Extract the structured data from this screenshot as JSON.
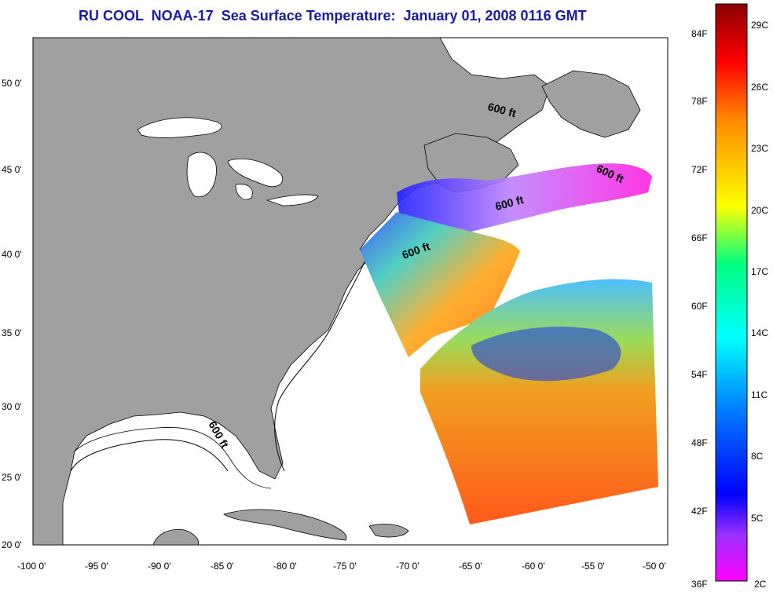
{
  "title": "RU COOL  NOAA-17  Sea Surface Temperature:  January 01, 2008 0116 GMT",
  "map": {
    "lat_labels": [
      "50 0'",
      "45 0'",
      "40 0'",
      "35 0'",
      "30 0'",
      "25 0'",
      "20 0'"
    ],
    "lon_labels": [
      "-100 0'",
      "-95 0'",
      "-90 0'",
      "-85 0'",
      "-80 0'",
      "-75 0'",
      "-70 0'",
      "-65 0'",
      "-60 0'",
      "-55 0'",
      "-50 0'"
    ],
    "contour_label": "600 ft",
    "colors": {
      "land": "#a0a0a0",
      "ocean": "#ffffff",
      "title": "#1a1aa8"
    }
  },
  "colorbar": {
    "fahrenheit_labels": [
      "84F",
      "78F",
      "72F",
      "66F",
      "60F",
      "54F",
      "48F",
      "42F",
      "36F"
    ],
    "celsius_labels": [
      "29C",
      "26C",
      "23C",
      "20C",
      "17C",
      "14C",
      "11C",
      "8C",
      "5C",
      "2C"
    ],
    "gradient_stops": [
      "#8b0000",
      "#ff0000",
      "#ff8800",
      "#ffff00",
      "#00ff80",
      "#00ffff",
      "#0080ff",
      "#0000ff",
      "#8000ff",
      "#ff00ff"
    ]
  }
}
